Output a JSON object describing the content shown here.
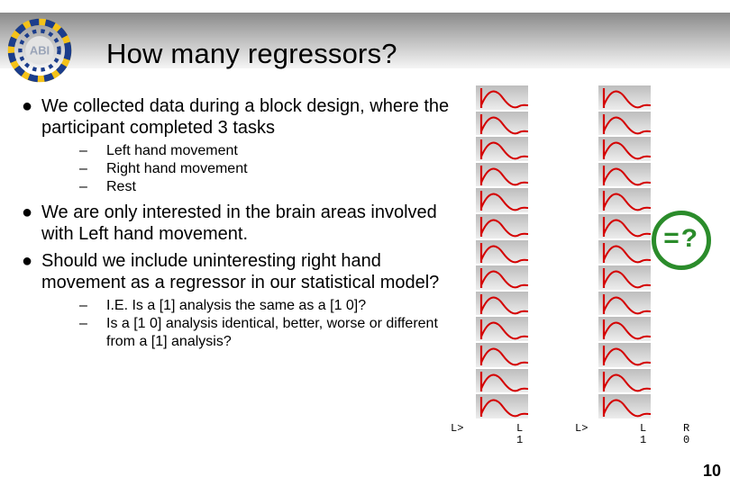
{
  "header": {
    "title": "How many regressors?",
    "logo_text": "ABI",
    "logo_colors": {
      "ring_outer": "#f4c21a",
      "ring_dash": "#1b3d8c",
      "center_fill": "#d9d9d9",
      "center_text": "#9aa4b8"
    }
  },
  "bullets": {
    "b1": "We collected data during a block design, where the participant completed 3 tasks",
    "b1_sub": {
      "s1": "Left hand movement",
      "s2": "Right hand movement",
      "s3": "Rest"
    },
    "b2": "We are only interested in the brain areas involved with Left hand movement.",
    "b3": "Should we include uninteresting right hand movement as a regressor in our statistical model?",
    "b3_sub": {
      "s1": "I.E. Is a [1] analysis the same as a [1 0]?",
      "s2": "Is a [1 0] analysis identical, better, worse or different from a [1] analysis?"
    }
  },
  "badge": {
    "text": "=?",
    "ring_color": "#2b8c2b",
    "text_color": "#2b8c2b"
  },
  "glm": {
    "rows": 13,
    "bg_grad_top": "#bdbdbd",
    "bg_grad_bottom": "#ededed",
    "curve_color": "#d40000"
  },
  "strip_labels": {
    "a": "L>",
    "b": "L\n1",
    "c": "L>",
    "d": "L\n1",
    "e": "R\n0"
  },
  "page_number": "10",
  "colors": {
    "text": "#000000",
    "background": "#ffffff"
  }
}
